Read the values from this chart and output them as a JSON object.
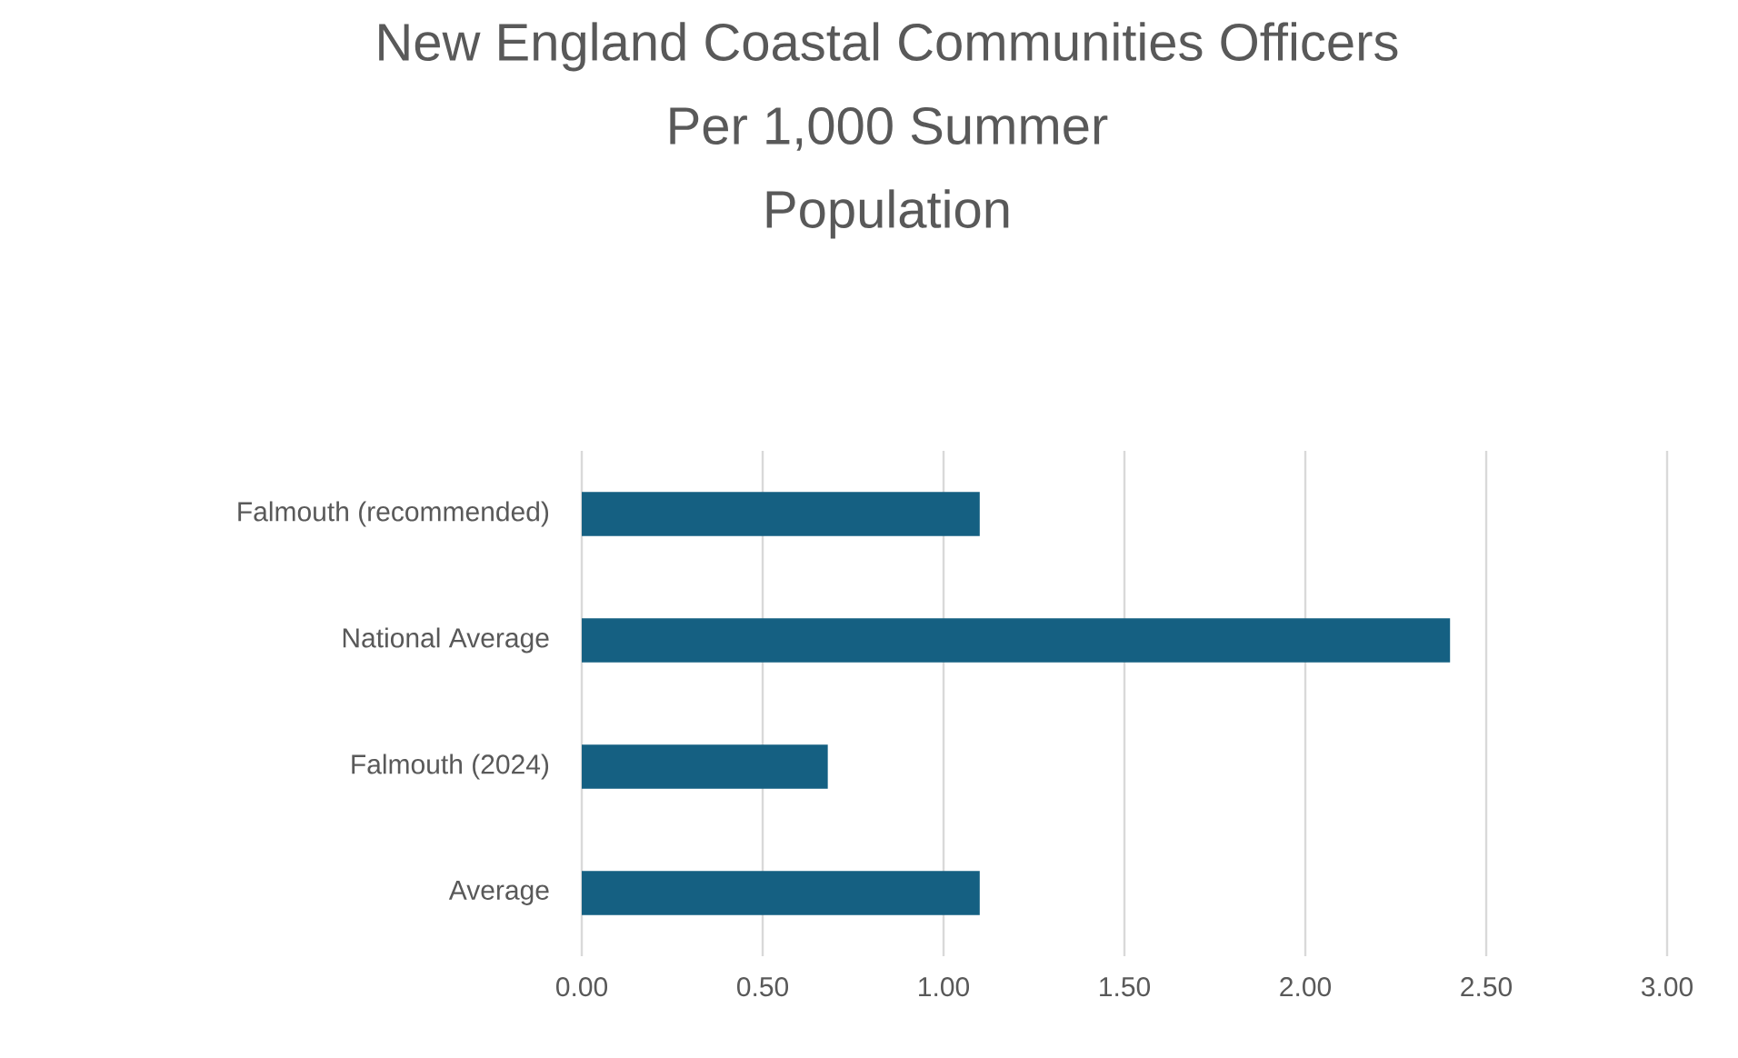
{
  "chart_data": {
    "type": "bar",
    "orientation": "horizontal",
    "title": "New England Coastal Communities Officers Per 1,000 Summer Population",
    "categories": [
      "Falmouth (recommended)",
      "National Average",
      "Falmouth (2024)",
      "Average"
    ],
    "values": [
      1.1,
      2.4,
      0.68,
      1.1
    ],
    "color": "#156082",
    "xlim": [
      0,
      3
    ],
    "xticks": [
      {
        "value": 0,
        "label": "0.00"
      },
      {
        "value": 0.5,
        "label": "0.50"
      },
      {
        "value": 1,
        "label": "1.00"
      },
      {
        "value": 1.5,
        "label": "1.50"
      },
      {
        "value": 2,
        "label": "2.00"
      },
      {
        "value": 2.5,
        "label": "2.50"
      },
      {
        "value": 3,
        "label": "3.00"
      }
    ],
    "grid": "x"
  }
}
